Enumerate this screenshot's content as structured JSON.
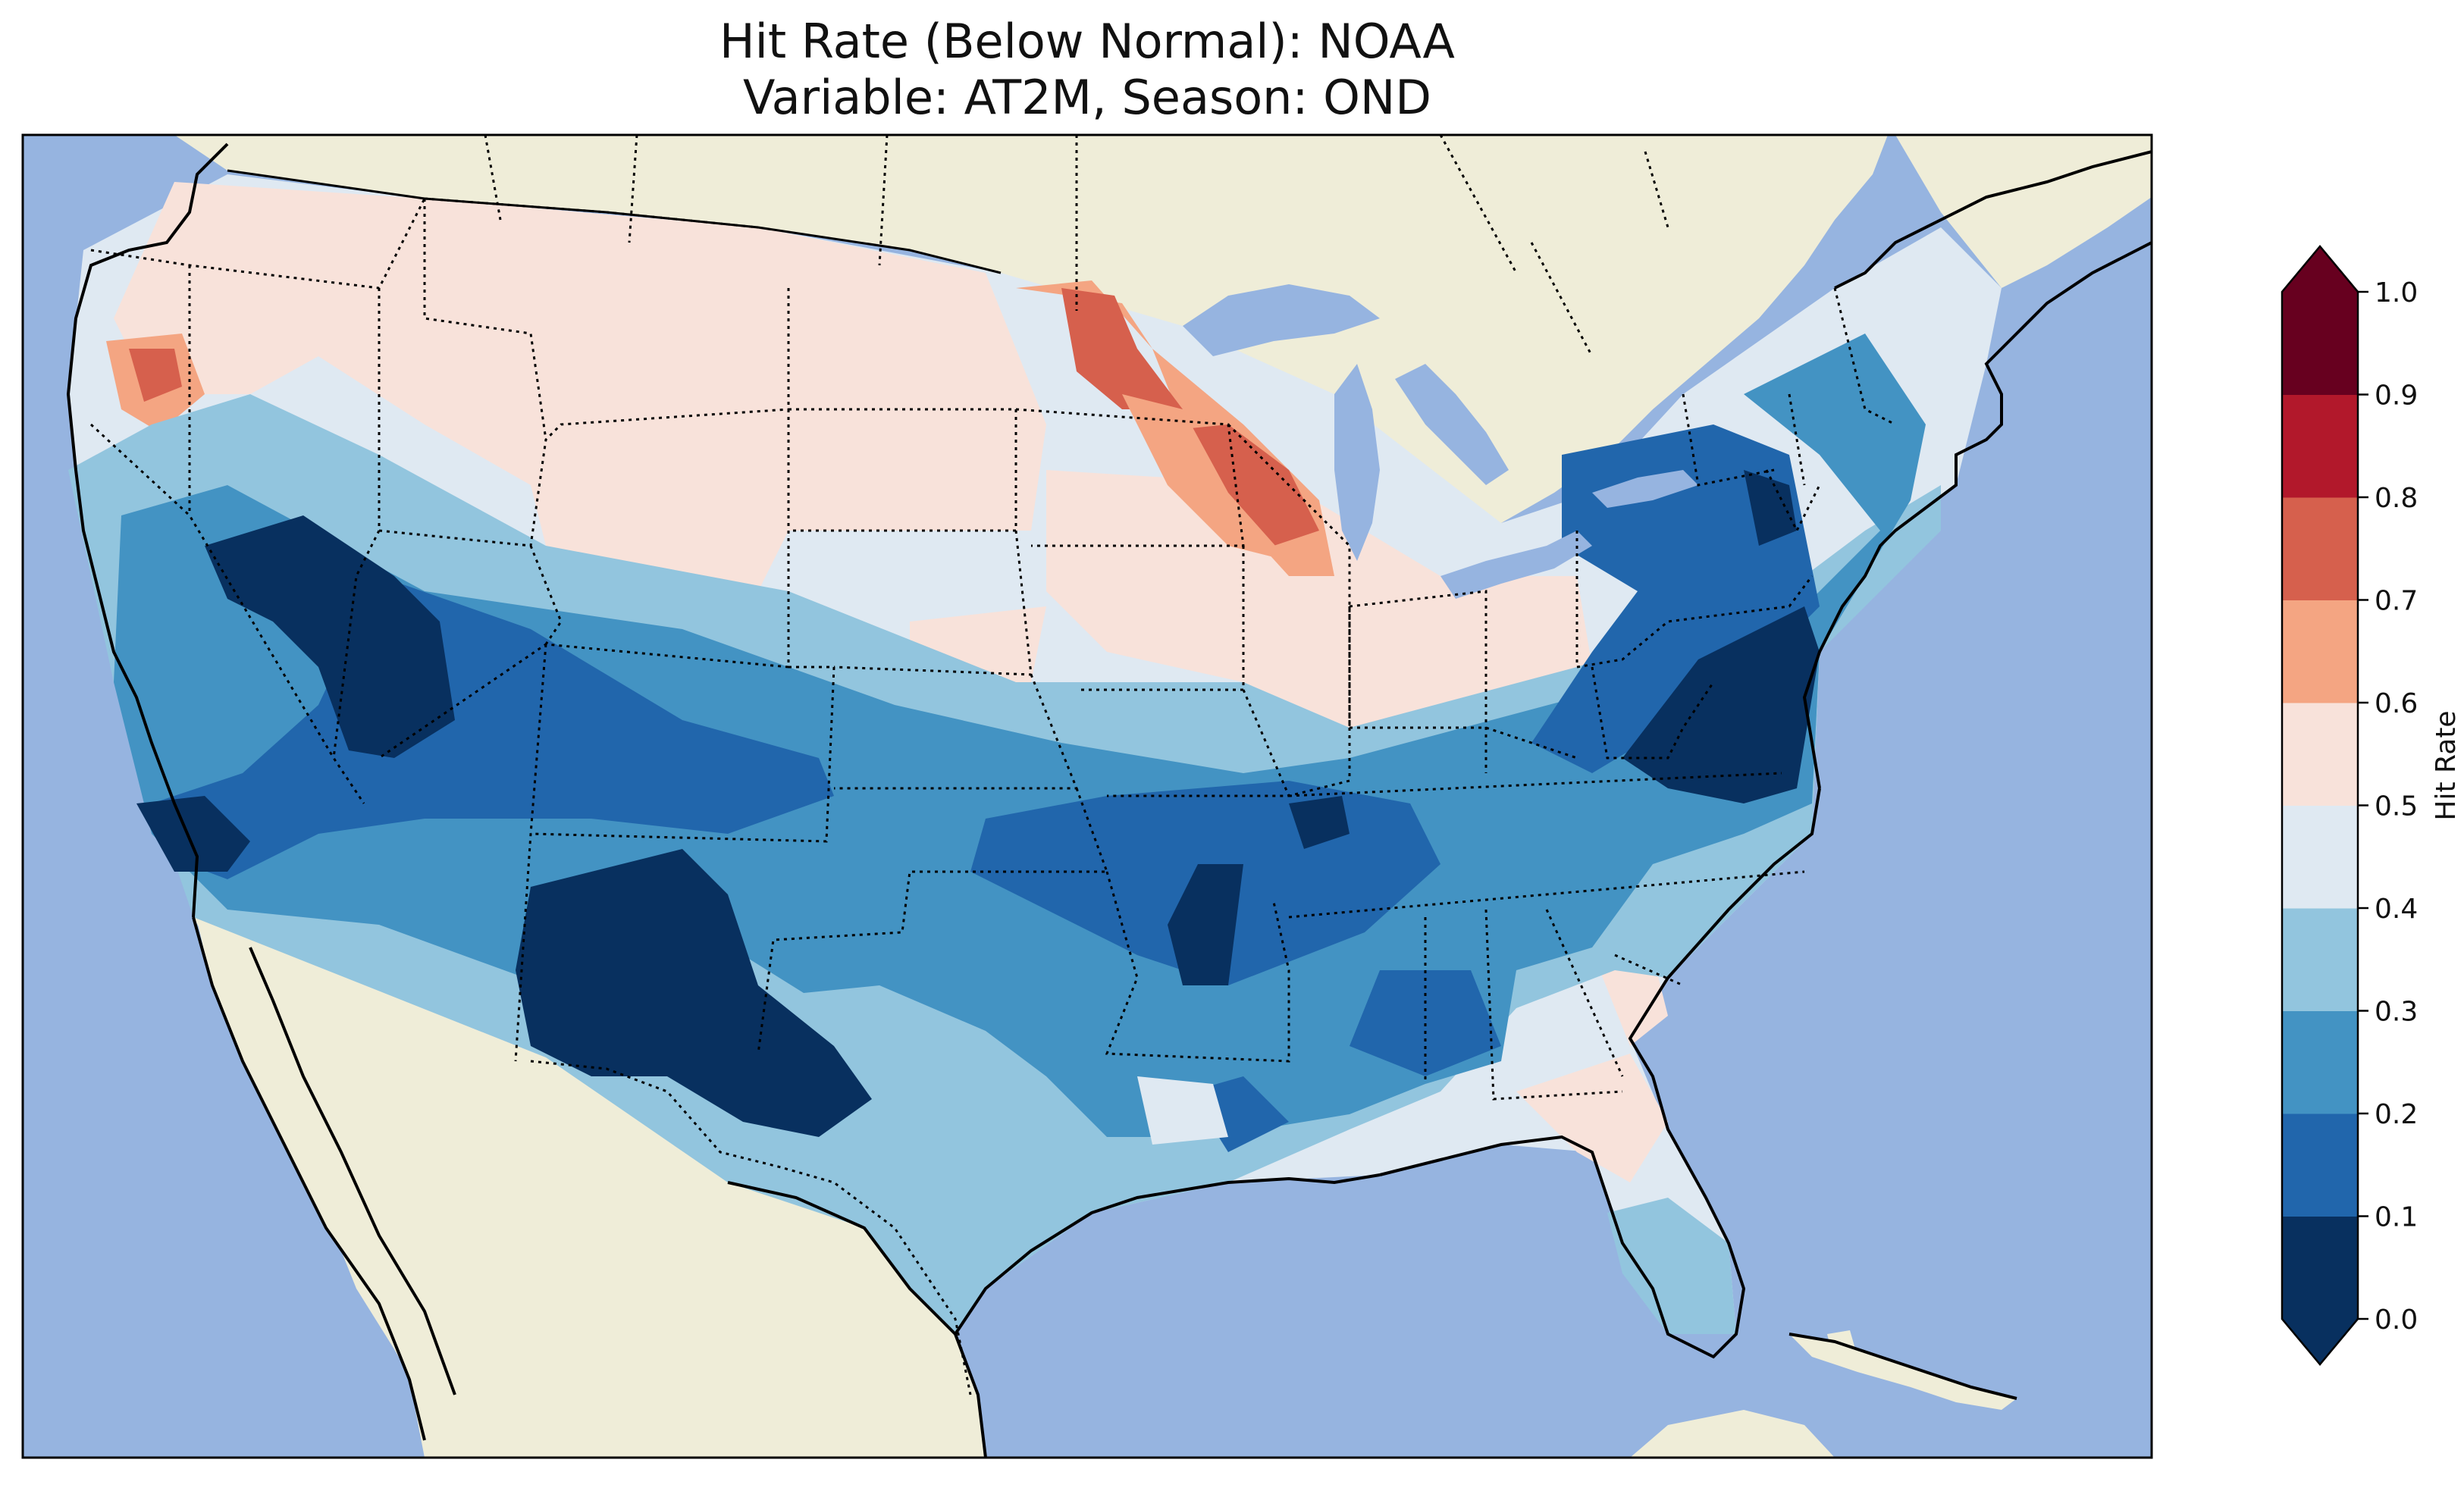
{
  "title": {
    "line1": "Hit Rate (Below Normal): NOAA",
    "line2": "Variable: AT2M, Season: OND"
  },
  "colors": {
    "ocean": "#96b4e0",
    "land": "#efedd8",
    "border": "#000000"
  },
  "colorbar": {
    "label": "Hit Rate",
    "ticks": [
      "0.0",
      "0.1",
      "0.2",
      "0.3",
      "0.4",
      "0.5",
      "0.6",
      "0.7",
      "0.8",
      "0.9",
      "1.0"
    ],
    "bins": [
      {
        "min": 0.0,
        "max": 0.1,
        "color": "#08305f"
      },
      {
        "min": 0.1,
        "max": 0.2,
        "color": "#2166ac"
      },
      {
        "min": 0.2,
        "max": 0.3,
        "color": "#4393c3"
      },
      {
        "min": 0.3,
        "max": 0.4,
        "color": "#92c5de"
      },
      {
        "min": 0.4,
        "max": 0.5,
        "color": "#dfe9f2"
      },
      {
        "min": 0.5,
        "max": 0.6,
        "color": "#f8e2da"
      },
      {
        "min": 0.6,
        "max": 0.7,
        "color": "#f4a582"
      },
      {
        "min": 0.7,
        "max": 0.8,
        "color": "#d6604d"
      },
      {
        "min": 0.8,
        "max": 0.9,
        "color": "#b2182b"
      },
      {
        "min": 0.9,
        "max": 1.0,
        "color": "#67001f"
      }
    ],
    "under_color": "#08305f",
    "over_color": "#67001f"
  }
}
